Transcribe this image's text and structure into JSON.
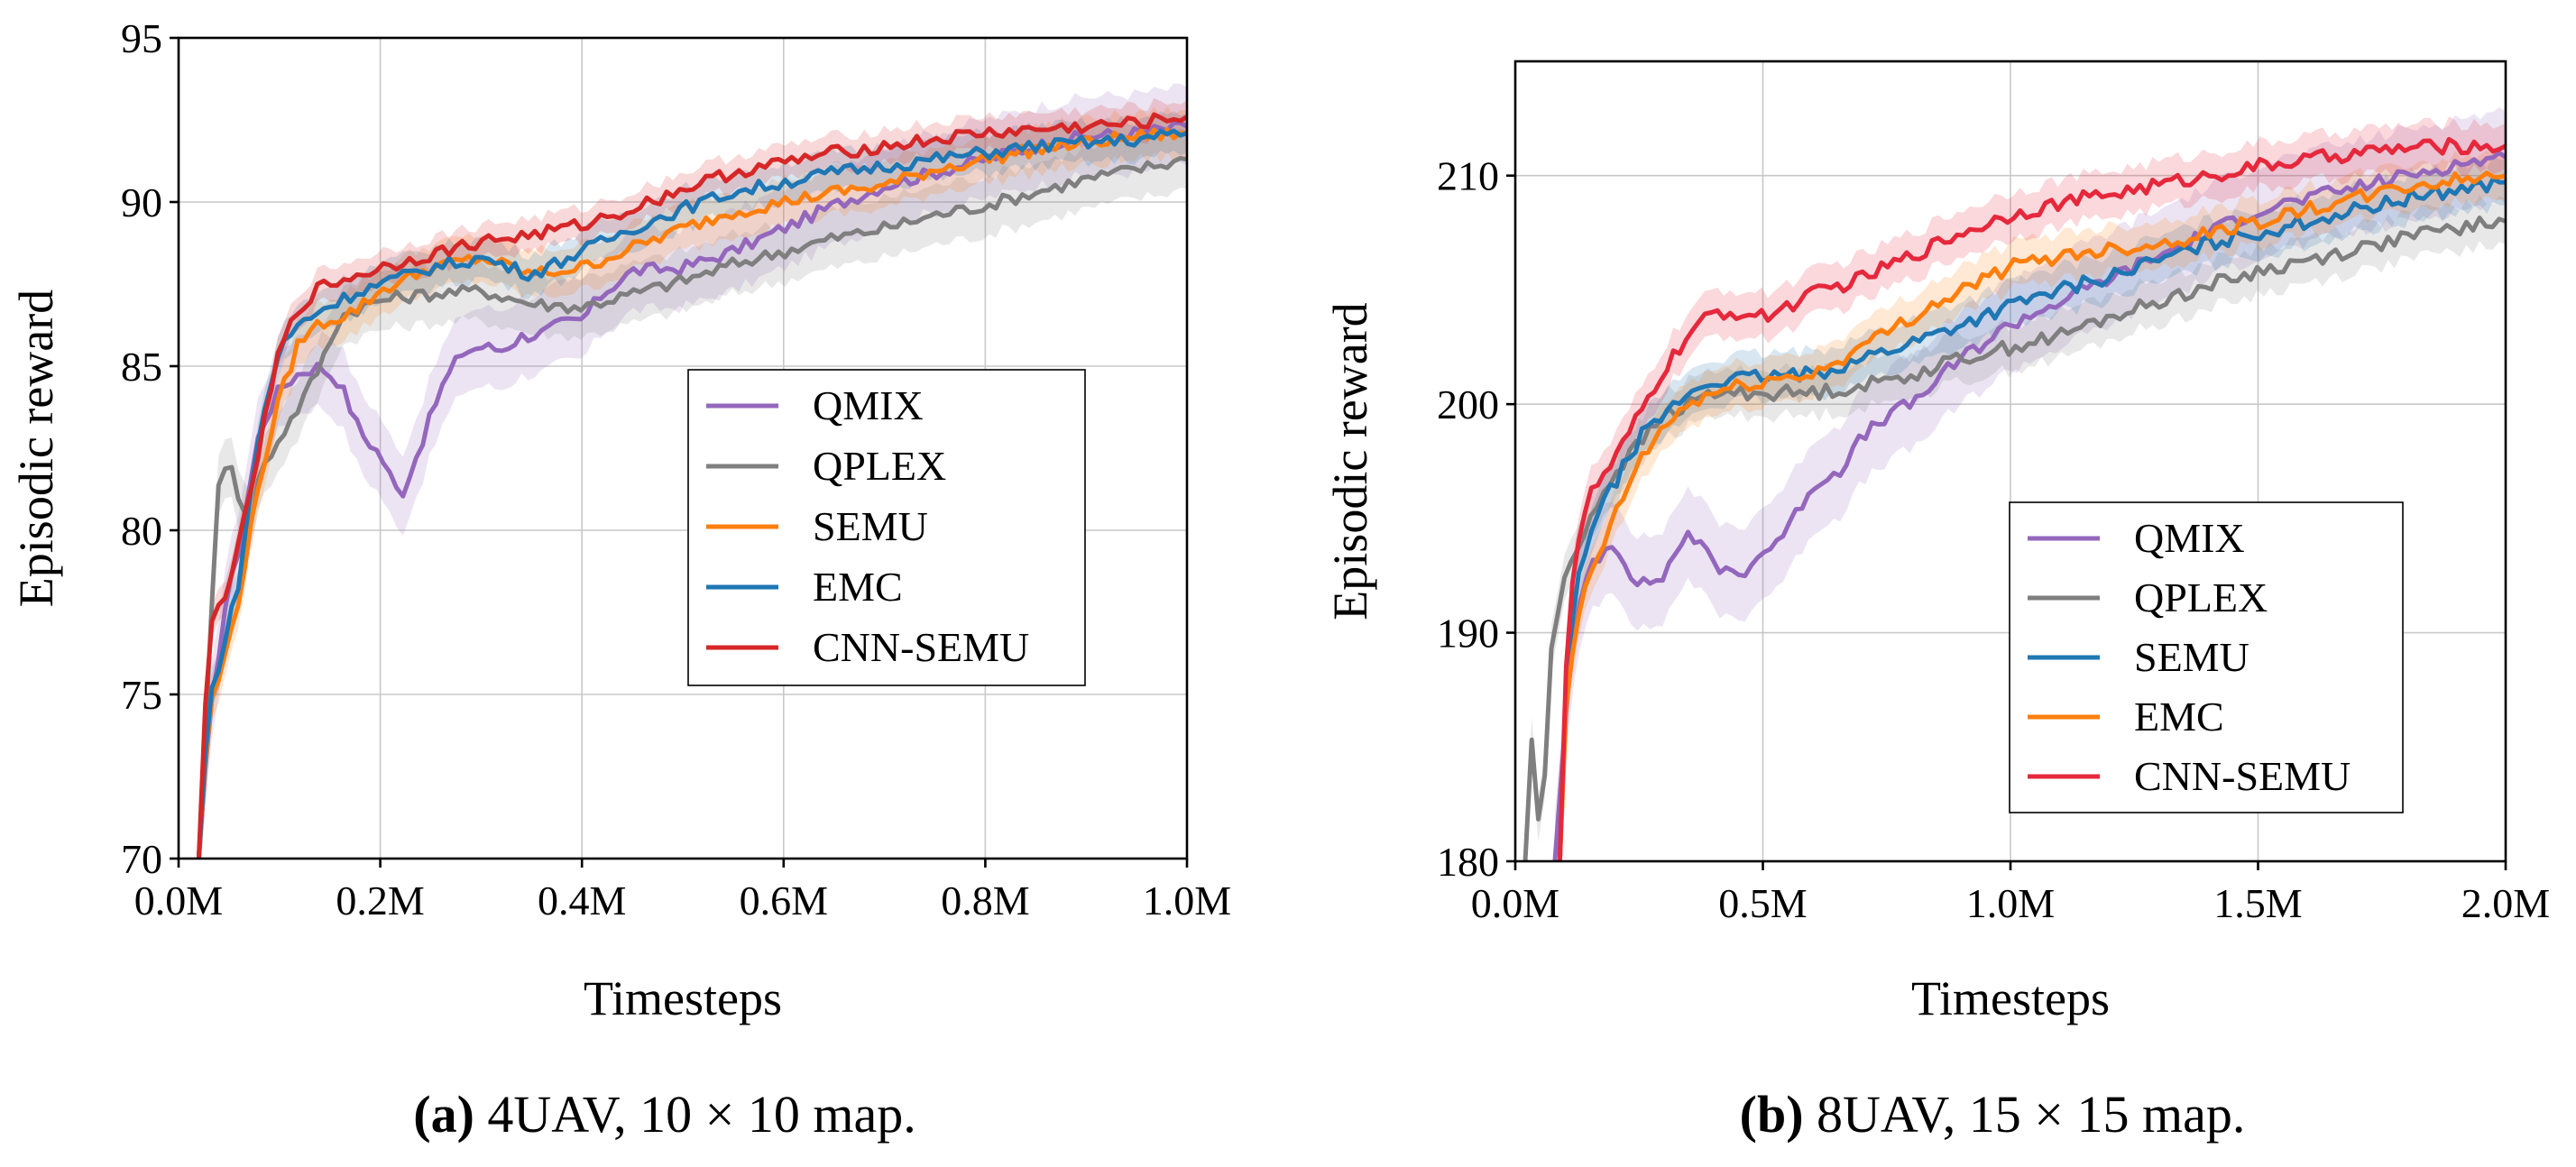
{
  "chart_data": [
    {
      "type": "line",
      "xlabel": "Timesteps",
      "ylabel": "Episodic reward",
      "xlim": [
        0,
        1.0
      ],
      "ylim": [
        70,
        95
      ],
      "xticks": [
        0,
        0.2,
        0.4,
        0.6,
        0.8,
        1.0
      ],
      "xtick_labels": [
        "0.0M",
        "0.2M",
        "0.4M",
        "0.6M",
        "0.8M",
        "1.0M"
      ],
      "yticks": [
        70,
        75,
        80,
        85,
        90,
        95
      ],
      "ytick_labels": [
        "70",
        "75",
        "80",
        "85",
        "90",
        "95"
      ],
      "grid": true,
      "legend_position": "center-right",
      "caption_tag": "(a)",
      "caption_text": "4UAV, 10 × 10 map.",
      "series": [
        {
          "name": "QMIX",
          "color": "#9467bd",
          "x": [
            0.02,
            0.03,
            0.045,
            0.06,
            0.08,
            0.1,
            0.12,
            0.14,
            0.16,
            0.18,
            0.2,
            0.22,
            0.24,
            0.26,
            0.28,
            0.3,
            0.32,
            0.34,
            0.36,
            0.38,
            0.4,
            0.42,
            0.45,
            0.5,
            0.55,
            0.6,
            0.65,
            0.7,
            0.75,
            0.8,
            0.85,
            0.9,
            0.95,
            1.0
          ],
          "y": [
            70,
            74,
            77.5,
            79.5,
            83,
            84.3,
            84.8,
            85,
            84.5,
            83,
            82.3,
            81,
            82.6,
            84.3,
            85.4,
            85.6,
            85.5,
            85.9,
            86,
            86.3,
            86.4,
            87.2,
            87.9,
            88,
            88.5,
            89.2,
            89.9,
            90.5,
            90.9,
            91.3,
            91.7,
            92,
            92.1,
            92.3
          ],
          "band": 1.2
        },
        {
          "name": "QPLEX",
          "color": "#7f7f7f",
          "x": [
            0.02,
            0.03,
            0.04,
            0.05,
            0.06,
            0.07,
            0.08,
            0.1,
            0.12,
            0.14,
            0.16,
            0.18,
            0.2,
            0.22,
            0.25,
            0.3,
            0.35,
            0.4,
            0.45,
            0.5,
            0.55,
            0.6,
            0.65,
            0.7,
            0.75,
            0.8,
            0.85,
            0.9,
            0.95,
            1.0
          ],
          "y": [
            70,
            76,
            81.5,
            82.4,
            81,
            80,
            81.7,
            82.8,
            83.8,
            85,
            86.5,
            86.8,
            87,
            87.1,
            87.2,
            87.3,
            86.9,
            86.8,
            87.2,
            87.6,
            88.1,
            88.5,
            88.9,
            89.2,
            89.6,
            89.9,
            90.3,
            90.7,
            91,
            91.3
          ],
          "band": 0.9
        },
        {
          "name": "SEMU",
          "color": "#ff7f0e",
          "x": [
            0.02,
            0.03,
            0.045,
            0.06,
            0.08,
            0.1,
            0.12,
            0.14,
            0.16,
            0.18,
            0.2,
            0.25,
            0.3,
            0.35,
            0.4,
            0.45,
            0.5,
            0.55,
            0.6,
            0.65,
            0.7,
            0.75,
            0.8,
            0.85,
            0.9,
            0.95,
            1.0
          ],
          "y": [
            70,
            74.5,
            76,
            78,
            81.5,
            84,
            85.8,
            86.3,
            86.5,
            86.8,
            87.3,
            88,
            88.3,
            87.8,
            88,
            88.6,
            89.2,
            89.7,
            90,
            90.3,
            90.5,
            91,
            91.3,
            91.6,
            91.8,
            92,
            92.1
          ],
          "band": 0.7
        },
        {
          "name": "EMC",
          "color": "#1f77b4",
          "x": [
            0.02,
            0.03,
            0.045,
            0.06,
            0.08,
            0.1,
            0.12,
            0.14,
            0.16,
            0.18,
            0.2,
            0.25,
            0.3,
            0.35,
            0.4,
            0.45,
            0.5,
            0.55,
            0.6,
            0.65,
            0.7,
            0.75,
            0.8,
            0.85,
            0.9,
            0.95,
            1.0
          ],
          "y": [
            70,
            74.8,
            76.5,
            78.5,
            83,
            85.5,
            86.3,
            86.7,
            87,
            87.3,
            87.5,
            88,
            88.3,
            87.8,
            88.5,
            89.2,
            89.8,
            90.3,
            90.6,
            90.9,
            91.1,
            91.3,
            91.5,
            91.7,
            91.8,
            91.9,
            92.1
          ],
          "band": 0.6
        },
        {
          "name": "CNN-SEMU",
          "color": "#d62728",
          "x": [
            0.02,
            0.03,
            0.045,
            0.06,
            0.08,
            0.1,
            0.12,
            0.14,
            0.16,
            0.18,
            0.2,
            0.25,
            0.3,
            0.35,
            0.4,
            0.45,
            0.5,
            0.55,
            0.6,
            0.65,
            0.7,
            0.75,
            0.8,
            0.85,
            0.9,
            0.95,
            1.0
          ],
          "y": [
            70,
            77,
            78,
            79.5,
            82.5,
            85.5,
            86.8,
            87.4,
            87.6,
            87.8,
            88,
            88.4,
            88.8,
            89,
            89.3,
            89.8,
            90.4,
            90.9,
            91.2,
            91.5,
            91.7,
            91.9,
            92.1,
            92.2,
            92.3,
            92.4,
            92.6
          ],
          "band": 0.5
        }
      ]
    },
    {
      "type": "line",
      "xlabel": "Timesteps",
      "ylabel": "Episodic reward",
      "xlim": [
        0,
        2.0
      ],
      "ylim": [
        180,
        215
      ],
      "xticks": [
        0,
        0.5,
        1.0,
        1.5,
        2.0
      ],
      "xtick_labels": [
        "0.0M",
        "0.5M",
        "1.0M",
        "1.5M",
        "2.0M"
      ],
      "yticks": [
        180,
        190,
        200,
        210
      ],
      "ytick_labels": [
        "180",
        "190",
        "200",
        "210"
      ],
      "grid": true,
      "legend_position": "lower-right",
      "caption_tag": "(b)",
      "caption_text": "8UAV, 15 × 15 map.",
      "series": [
        {
          "name": "QMIX",
          "color": "#9467bd",
          "x": [
            0.08,
            0.1,
            0.12,
            0.15,
            0.2,
            0.25,
            0.3,
            0.35,
            0.4,
            0.45,
            0.5,
            0.55,
            0.6,
            0.65,
            0.7,
            0.75,
            0.8,
            0.9,
            1.0,
            1.1,
            1.2,
            1.3,
            1.4,
            1.5,
            1.6,
            1.7,
            1.8,
            1.9,
            2.0
          ],
          "y": [
            180,
            186,
            190,
            193,
            194,
            192,
            192.5,
            194.5,
            193,
            192.5,
            193.5,
            194.5,
            196.5,
            197,
            198.5,
            199.5,
            200,
            202,
            203.5,
            204.5,
            205.5,
            206.5,
            207.5,
            208.5,
            209,
            209.5,
            210,
            210.5,
            210.8
          ],
          "band": 2.0
        },
        {
          "name": "QPLEX",
          "color": "#7f7f7f",
          "x": [
            0.02,
            0.03,
            0.04,
            0.05,
            0.06,
            0.07,
            0.08,
            0.09,
            0.1,
            0.12,
            0.15,
            0.2,
            0.3,
            0.4,
            0.5,
            0.6,
            0.7,
            0.8,
            0.9,
            1.0,
            1.1,
            1.2,
            1.3,
            1.4,
            1.5,
            1.6,
            1.7,
            1.8,
            1.9,
            2.0
          ],
          "y": [
            180,
            186.5,
            183,
            181,
            184,
            189,
            190,
            191,
            192.5,
            193.5,
            195,
            197,
            199.5,
            200.5,
            200.5,
            200.5,
            200.8,
            201.3,
            202,
            202.5,
            203,
            203.8,
            204.5,
            205.2,
            205.8,
            206.3,
            206.8,
            207.3,
            207.7,
            208
          ],
          "band": 1.0
        },
        {
          "name": "SEMU",
          "color": "#1f77b4",
          "x": [
            0.09,
            0.1,
            0.12,
            0.15,
            0.2,
            0.25,
            0.3,
            0.35,
            0.4,
            0.5,
            0.6,
            0.7,
            0.8,
            0.9,
            1.0,
            1.1,
            1.2,
            1.3,
            1.4,
            1.5,
            1.6,
            1.7,
            1.8,
            1.9,
            2.0
          ],
          "y": [
            180,
            187,
            191.5,
            194.5,
            196.5,
            198.5,
            199.5,
            200.5,
            201,
            201.2,
            201.3,
            202,
            202.7,
            203.5,
            204.3,
            205,
            205.6,
            206.3,
            207,
            207.5,
            208,
            208.5,
            209,
            209.4,
            209.7
          ],
          "band": 1.0
        },
        {
          "name": "EMC",
          "color": "#ff7f0e",
          "x": [
            0.09,
            0.1,
            0.12,
            0.15,
            0.2,
            0.25,
            0.3,
            0.35,
            0.4,
            0.5,
            0.6,
            0.7,
            0.8,
            0.9,
            1.0,
            1.1,
            1.2,
            1.3,
            1.4,
            1.5,
            1.6,
            1.7,
            1.8,
            1.9,
            2.0
          ],
          "y": [
            180,
            186,
            190,
            192.5,
            195,
            197.5,
            199,
            200,
            200.5,
            201,
            201.3,
            202.5,
            203.8,
            205,
            206,
            206.5,
            206.8,
            207,
            207.5,
            208,
            208.5,
            209,
            209.5,
            209.8,
            210
          ],
          "band": 1.0
        },
        {
          "name": "CNN-SEMU",
          "color": "#e6283c",
          "x": [
            0.09,
            0.1,
            0.12,
            0.15,
            0.2,
            0.25,
            0.3,
            0.35,
            0.4,
            0.45,
            0.5,
            0.6,
            0.7,
            0.8,
            0.9,
            1.0,
            1.1,
            1.2,
            1.3,
            1.4,
            1.5,
            1.6,
            1.7,
            1.8,
            1.9,
            2.0
          ],
          "y": [
            180,
            188,
            193.5,
            196,
            197.5,
            199.5,
            201.5,
            203,
            204,
            204,
            203.8,
            204.8,
            205.5,
            206.5,
            207.5,
            208.3,
            208.8,
            209.2,
            209.6,
            210,
            210.4,
            210.7,
            211,
            211.2,
            211.3,
            211.3
          ],
          "band": 1.0
        }
      ]
    }
  ]
}
